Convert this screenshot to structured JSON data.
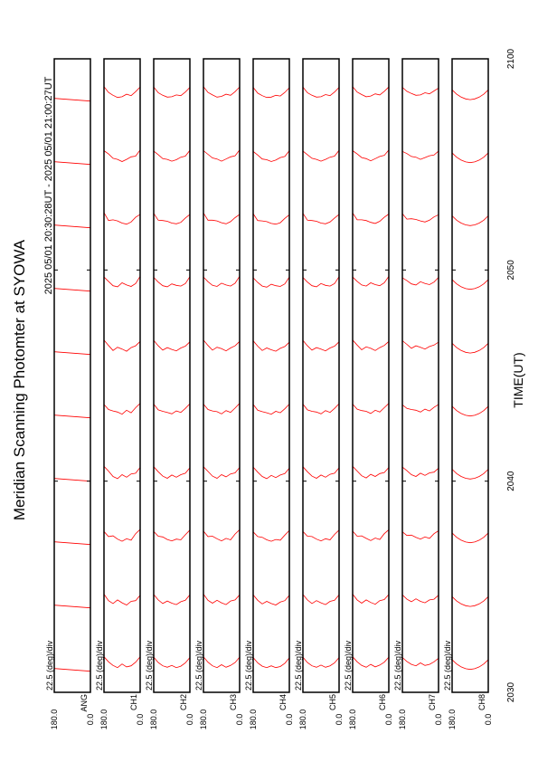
{
  "chart_data": {
    "type": "msp",
    "title": "Meridian Scanning Photomter at SYOWA",
    "subtitle": "2025 05/01 20:30:28UT - 2025 05/01 21:00:27UT",
    "xlabel": "TIME(UT)",
    "scale_label": "22.5 (deg)/div",
    "color": "#ff0000",
    "xlim": [
      30,
      60
    ],
    "xticks": [
      {
        "value": 30,
        "label": "2030"
      },
      {
        "value": 40,
        "label": "2040"
      },
      {
        "value": 50,
        "label": "2050"
      },
      {
        "value": 60,
        "label": "2100"
      }
    ],
    "ylim": [
      0,
      180
    ],
    "yticks": [
      {
        "value": 180,
        "label": "180.0"
      },
      {
        "value": 0,
        "label": "0.0"
      }
    ],
    "angles": [
      0,
      22.5,
      45,
      67.5,
      90,
      112.5,
      135,
      157.5,
      180
    ],
    "times": [
      31,
      34,
      37,
      40,
      43,
      46,
      49,
      52,
      55,
      58
    ],
    "panels": [
      {
        "label": "ANG"
      },
      {
        "label": "CH1",
        "scans": [
          [
            4,
            2.5,
            1.5,
            1.2,
            2,
            1,
            1.6,
            2.6,
            4
          ],
          [
            3.5,
            2,
            1.8,
            0.8,
            1.4,
            2.2,
            1.2,
            2,
            3.8
          ],
          [
            4.2,
            3,
            1.2,
            1.6,
            0.9,
            1.5,
            2.4,
            2.2,
            3.6
          ],
          [
            3.8,
            2.2,
            2,
            1.1,
            1.8,
            0.7,
            1.3,
            2.8,
            4.1
          ],
          [
            4,
            2.8,
            1.4,
            2.1,
            1,
            1.6,
            1.9,
            2.3,
            3.7
          ],
          [
            3.6,
            2.4,
            1.9,
            0.9,
            1.5,
            2,
            1.1,
            2.5,
            4
          ],
          [
            4.1,
            2.1,
            1.3,
            1.7,
            2.3,
            1.2,
            1.5,
            2.7,
            3.9
          ],
          [
            3.7,
            2.9,
            1.6,
            1,
            1.3,
            1.9,
            2.2,
            2,
            4.2
          ],
          [
            4,
            2.3,
            2.1,
            1.4,
            0.8,
            1.4,
            1.7,
            2.9,
            3.8
          ],
          [
            3.9,
            2.6,
            1.5,
            1.9,
            1.2,
            1,
            1.6,
            2.4,
            4
          ]
        ]
      },
      {
        "label": "CH2",
        "scans": [
          [
            3.8,
            2.3,
            1.4,
            1,
            1.6,
            1.1,
            1.5,
            2.4,
            3.9
          ],
          [
            3.6,
            2.1,
            1.7,
            0.9,
            1.3,
            1.9,
            1.2,
            2.2,
            3.7
          ],
          [
            4,
            2.7,
            1.3,
            1.5,
            1,
            1.4,
            2.1,
            2.3,
            3.6
          ],
          [
            3.7,
            2.2,
            1.8,
            1.1,
            1.7,
            0.8,
            1.4,
            2.6,
            4
          ],
          [
            3.9,
            2.6,
            1.5,
            1.9,
            1.1,
            1.5,
            1.8,
            2.2,
            3.8
          ],
          [
            3.5,
            2.3,
            1.8,
            1,
            1.4,
            1.9,
            1.2,
            2.4,
            3.9
          ],
          [
            4,
            2.1,
            1.4,
            1.6,
            2,
            1.2,
            1.5,
            2.5,
            3.8
          ],
          [
            3.7,
            2.7,
            1.5,
            1.1,
            1.3,
            1.8,
            2,
            2.1,
            4
          ],
          [
            3.9,
            2.3,
            2,
            1.3,
            0.9,
            1.4,
            1.6,
            2.7,
            3.7
          ],
          [
            3.8,
            2.5,
            1.5,
            1.7,
            1.2,
            1.1,
            1.6,
            2.3,
            3.9
          ]
        ]
      },
      {
        "label": "CH3",
        "scans": [
          [
            3.9,
            2.4,
            1.6,
            1.1,
            1.8,
            1,
            1.5,
            2.5,
            4
          ],
          [
            3.6,
            2.2,
            1.9,
            0.9,
            1.4,
            2.1,
            1.3,
            2.1,
            3.8
          ],
          [
            4.1,
            2.9,
            1.3,
            1.7,
            1,
            1.6,
            2.3,
            2.2,
            3.7
          ],
          [
            3.8,
            2.3,
            2,
            1.2,
            1.8,
            0.8,
            1.4,
            2.7,
            4
          ],
          [
            4,
            2.7,
            1.5,
            2,
            1.1,
            1.7,
            1.9,
            2.3,
            3.8
          ],
          [
            3.6,
            2.4,
            1.8,
            1,
            1.6,
            2,
            1.2,
            2.5,
            4
          ],
          [
            4.1,
            2.2,
            1.4,
            1.7,
            2.2,
            1.3,
            1.6,
            2.6,
            3.9
          ],
          [
            3.7,
            2.8,
            1.7,
            1.1,
            1.4,
            1.9,
            2.1,
            2.1,
            4.1
          ],
          [
            4,
            2.4,
            2.1,
            1.5,
            0.9,
            1.5,
            1.8,
            2.8,
            3.8
          ],
          [
            3.9,
            2.6,
            1.6,
            1.9,
            1.3,
            1.1,
            1.7,
            2.4,
            4
          ]
        ]
      },
      {
        "label": "CH4",
        "scans": [
          [
            3.7,
            2.2,
            1.3,
            1,
            1.5,
            1,
            1.4,
            2.3,
            3.8
          ],
          [
            3.5,
            2,
            1.6,
            0.8,
            1.2,
            1.8,
            1.1,
            2.1,
            3.6
          ],
          [
            3.9,
            2.6,
            1.2,
            1.4,
            0.9,
            1.3,
            2,
            2.2,
            3.5
          ],
          [
            3.6,
            2.1,
            1.7,
            1,
            1.6,
            0.7,
            1.3,
            2.5,
            3.9
          ],
          [
            3.8,
            2.5,
            1.4,
            1.8,
            1,
            1.4,
            1.7,
            2.1,
            3.7
          ],
          [
            3.4,
            2.2,
            1.7,
            0.9,
            1.3,
            1.8,
            1.1,
            2.3,
            3.8
          ],
          [
            3.9,
            2,
            1.3,
            1.5,
            1.9,
            1.1,
            1.4,
            2.4,
            3.7
          ],
          [
            3.6,
            2.6,
            1.4,
            1,
            1.2,
            1.7,
            1.9,
            2,
            3.9
          ],
          [
            3.8,
            2.2,
            1.9,
            1.2,
            0.8,
            1.3,
            1.5,
            2.6,
            3.6
          ],
          [
            3.7,
            2.4,
            1.4,
            1.6,
            1.1,
            1,
            1.5,
            2.2,
            3.8
          ]
        ]
      },
      {
        "label": "CH5",
        "scans": [
          [
            3.8,
            2.3,
            1.5,
            1.1,
            1.7,
            1.1,
            1.5,
            2.4,
            3.9
          ],
          [
            3.6,
            2.1,
            1.8,
            0.9,
            1.4,
            2,
            1.2,
            2.2,
            3.7
          ],
          [
            4,
            2.8,
            1.3,
            1.6,
            1,
            1.5,
            2.2,
            2.3,
            3.6
          ],
          [
            3.7,
            2.2,
            1.9,
            1.1,
            1.7,
            0.8,
            1.4,
            2.6,
            4
          ],
          [
            3.9,
            2.6,
            1.5,
            2,
            1.1,
            1.6,
            1.8,
            2.2,
            3.8
          ],
          [
            3.5,
            2.3,
            1.8,
            1,
            1.5,
            1.9,
            1.2,
            2.4,
            3.9
          ],
          [
            4,
            2.1,
            1.4,
            1.6,
            2.1,
            1.2,
            1.5,
            2.5,
            3.8
          ],
          [
            3.7,
            2.7,
            1.6,
            1.1,
            1.3,
            1.8,
            2,
            2.1,
            4
          ],
          [
            3.9,
            2.3,
            2,
            1.4,
            0.9,
            1.4,
            1.7,
            2.7,
            3.7
          ],
          [
            3.8,
            2.5,
            1.5,
            1.8,
            1.2,
            1.1,
            1.6,
            2.3,
            3.9
          ]
        ]
      },
      {
        "label": "CH6",
        "scans": [
          [
            3.9,
            2.5,
            1.7,
            1.2,
            1.9,
            1.1,
            1.6,
            2.6,
            4
          ],
          [
            3.7,
            2.3,
            2,
            1,
            1.5,
            2.2,
            1.3,
            2.2,
            3.8
          ],
          [
            4.1,
            3,
            1.4,
            1.8,
            1.1,
            1.7,
            2.4,
            2.3,
            3.7
          ],
          [
            3.8,
            2.4,
            2.1,
            1.3,
            1.9,
            0.9,
            1.5,
            2.8,
            4.1
          ],
          [
            4,
            2.8,
            1.6,
            2.1,
            1.2,
            1.8,
            2,
            2.4,
            3.8
          ],
          [
            3.6,
            2.5,
            1.9,
            1.1,
            1.7,
            2.1,
            1.3,
            2.6,
            4
          ],
          [
            4.1,
            2.3,
            1.5,
            1.8,
            2.3,
            1.4,
            1.7,
            2.7,
            3.9
          ],
          [
            3.8,
            2.9,
            1.8,
            1.2,
            1.5,
            2,
            2.2,
            2.2,
            4.1
          ],
          [
            4,
            2.5,
            2.2,
            1.6,
            1,
            1.6,
            1.9,
            2.9,
            3.8
          ],
          [
            3.9,
            2.7,
            1.7,
            2,
            1.4,
            1.2,
            1.8,
            2.5,
            4
          ]
        ]
      },
      {
        "label": "CH7",
        "scans": [
          [
            3.6,
            2.6,
            1.9,
            1.6,
            2.3,
            1.5,
            1.9,
            2.7,
            3.8
          ],
          [
            3.5,
            2.4,
            2.2,
            1.4,
            1.8,
            2.5,
            1.7,
            2.4,
            3.6
          ],
          [
            3.8,
            3,
            1.7,
            2.1,
            1.5,
            2,
            2.6,
            2.5,
            3.5
          ],
          [
            3.6,
            2.5,
            2.3,
            1.6,
            2.2,
            1.3,
            1.8,
            2.9,
            3.9
          ],
          [
            3.7,
            2.9,
            1.9,
            2.4,
            1.6,
            2.1,
            2.3,
            2.6,
            3.6
          ],
          [
            3.4,
            2.6,
            2.2,
            1.5,
            2,
            2.4,
            1.7,
            2.8,
            3.8
          ],
          [
            3.8,
            2.5,
            1.8,
            2.1,
            2.6,
            1.7,
            2,
            2.9,
            3.7
          ],
          [
            3.6,
            3,
            2.1,
            1.6,
            1.9,
            2.3,
            2.5,
            2.4,
            3.9
          ],
          [
            3.7,
            2.6,
            2.4,
            1.9,
            1.4,
            2,
            2.2,
            3,
            3.6
          ],
          [
            3.6,
            2.8,
            2,
            2.3,
            1.7,
            1.6,
            2.1,
            2.7,
            3.8
          ]
        ]
      },
      {
        "label": "CH8",
        "scans": [
          [
            3.2,
            2,
            1.2,
            0.7,
            0.5,
            0.7,
            1.2,
            2,
            3.2
          ],
          [
            3.1,
            1.9,
            1.1,
            0.6,
            0.4,
            0.6,
            1.1,
            1.9,
            3.1
          ],
          [
            3.2,
            2,
            1.2,
            0.7,
            0.5,
            0.7,
            1.2,
            2,
            3.2
          ],
          [
            3.3,
            2.1,
            1.3,
            0.8,
            0.6,
            0.8,
            1.3,
            2.1,
            3.3
          ],
          [
            3.2,
            2,
            1.2,
            0.7,
            0.5,
            0.7,
            1.2,
            2,
            3.2
          ],
          [
            3.1,
            1.9,
            1.1,
            0.6,
            0.4,
            0.6,
            1.1,
            1.9,
            3.1
          ],
          [
            3.2,
            2,
            1.2,
            0.7,
            0.5,
            0.7,
            1.2,
            2,
            3.2
          ],
          [
            3.3,
            2.1,
            1.3,
            0.8,
            0.6,
            0.8,
            1.3,
            2.1,
            3.3
          ],
          [
            3.2,
            2,
            1.2,
            0.7,
            0.5,
            0.7,
            1.2,
            2,
            3.2
          ],
          [
            3.1,
            1.9,
            1.1,
            0.6,
            0.4,
            0.6,
            1.1,
            1.9,
            3.1
          ]
        ]
      }
    ]
  }
}
